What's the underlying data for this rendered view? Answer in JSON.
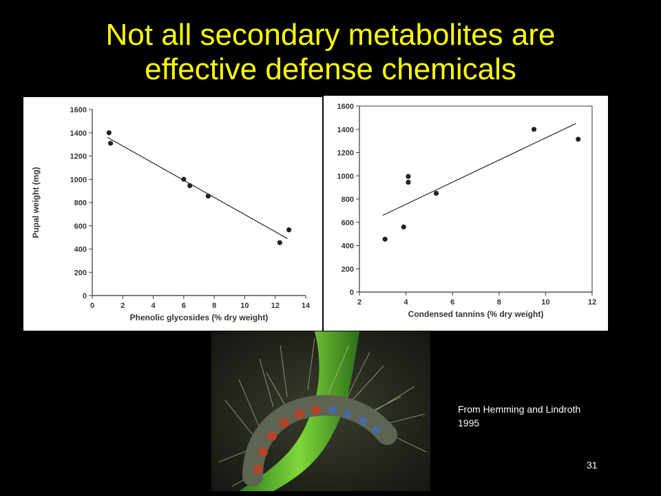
{
  "slide": {
    "title_line1": "Not all secondary metabolites are",
    "title_line2": "effective  defense chemicals",
    "source_line1": "From Hemming and Lindroth",
    "source_line2": "1995",
    "slide_number": "31",
    "title_color": "#ffff00",
    "background_color": "#000000"
  },
  "photo": {
    "subject": "caterpillar-photo"
  },
  "chart_data": [
    {
      "type": "scatter",
      "title": "",
      "xlabel": "Phenolic glycosides (% dry weight)",
      "ylabel": "Pupal weight (mg)",
      "xlim": [
        0,
        14
      ],
      "ylim": [
        0,
        1600
      ],
      "x_ticks": [
        "0",
        "2",
        "4",
        "6",
        "8",
        "10",
        "12",
        "14"
      ],
      "y_ticks": [
        "0",
        "200",
        "400",
        "600",
        "800",
        "1000",
        "1200",
        "1400",
        "1600"
      ],
      "grid": false,
      "points": [
        {
          "x": 1.1,
          "y": 1400
        },
        {
          "x": 1.2,
          "y": 1310
        },
        {
          "x": 6.0,
          "y": 1000
        },
        {
          "x": 6.4,
          "y": 945
        },
        {
          "x": 7.6,
          "y": 855
        },
        {
          "x": 12.3,
          "y": 455
        },
        {
          "x": 12.9,
          "y": 565
        }
      ],
      "trend_line": {
        "x": [
          1.0,
          12.8
        ],
        "y": [
          1360,
          490
        ]
      }
    },
    {
      "type": "scatter",
      "title": "",
      "xlabel": "Condensed tannins (% dry weight)",
      "ylabel": "",
      "xlim": [
        2,
        12
      ],
      "ylim": [
        0,
        1600
      ],
      "x_ticks": [
        "2",
        "4",
        "6",
        "8",
        "10",
        "12"
      ],
      "y_ticks": [
        "0",
        "200",
        "400",
        "600",
        "800",
        "1000",
        "1200",
        "1400",
        "1600"
      ],
      "grid": false,
      "points": [
        {
          "x": 3.1,
          "y": 455
        },
        {
          "x": 3.9,
          "y": 560
        },
        {
          "x": 4.1,
          "y": 995
        },
        {
          "x": 4.1,
          "y": 945
        },
        {
          "x": 5.3,
          "y": 850
        },
        {
          "x": 9.5,
          "y": 1400
        },
        {
          "x": 11.4,
          "y": 1315
        }
      ],
      "trend_line": {
        "x": [
          3.0,
          11.3
        ],
        "y": [
          660,
          1450
        ]
      }
    }
  ]
}
